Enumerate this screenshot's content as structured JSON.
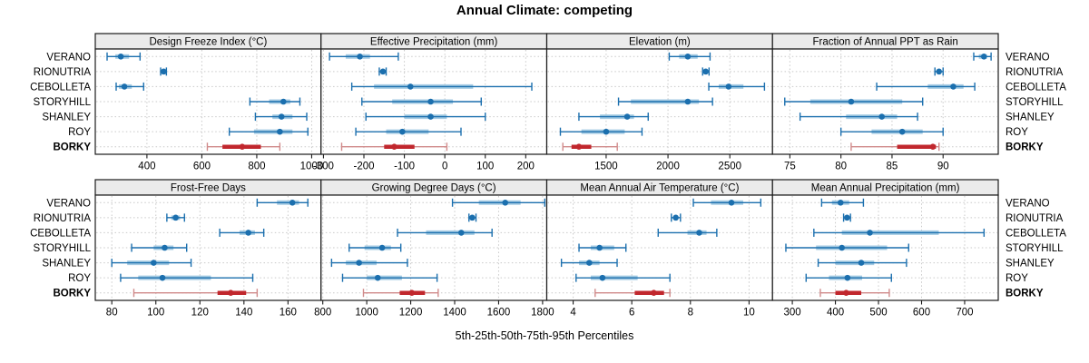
{
  "title": "Annual Climate: competing",
  "caption": "5th-25th-50th-75th-95th Percentiles",
  "chart_data": {
    "type": "dotplot-percentiles",
    "title": "Annual Climate: competing",
    "caption": "5th-25th-50th-75th-95th Percentiles",
    "percentiles": [
      5,
      25,
      50,
      75,
      95
    ],
    "sites": [
      "VERANO",
      "RIONUTRIA",
      "CEBOLLETA",
      "STORYHILL",
      "SHANLEY",
      "ROY",
      "BORKY"
    ],
    "highlight_site": "BORKY",
    "grid": "dotted",
    "layout_hint": "2 rows x 4 columns, free x scales, site labels on both sides",
    "colors": {
      "blue_main": "#1b6fae",
      "blue_band": "#a5cbe3",
      "red_main": "#c1272d",
      "red_light": "#d08a8a",
      "strip_bg": "#ebebeb",
      "frame": "#1a1a1a",
      "grid": "#c9c9c9"
    },
    "panels": [
      {
        "label": "Design Freeze Index (°C)",
        "ticks": [
          400,
          600,
          800,
          1000
        ],
        "xlim": [
          212,
          1034
        ],
        "values": [
          [
            255,
            285,
            305,
            335,
            375
          ],
          [
            450,
            456,
            461,
            466,
            471
          ],
          [
            288,
            298,
            318,
            345,
            388
          ],
          [
            775,
            845,
            897,
            922,
            957
          ],
          [
            795,
            857,
            890,
            930,
            982
          ],
          [
            700,
            790,
            884,
            930,
            986
          ],
          [
            620,
            675,
            747,
            815,
            884
          ]
        ]
      },
      {
        "label": "Effective Precipitation (mm)",
        "ticks": [
          -300,
          -200,
          -100,
          0,
          100,
          200
        ],
        "xlim": [
          -306,
          252
        ],
        "values": [
          [
            -285,
            -245,
            -210,
            -185,
            -115
          ],
          [
            -162,
            -157,
            -153,
            -149,
            -145
          ],
          [
            -230,
            -175,
            -85,
            70,
            215
          ],
          [
            -205,
            -130,
            -35,
            20,
            90
          ],
          [
            -195,
            -100,
            -35,
            5,
            100
          ],
          [
            -220,
            -145,
            -105,
            -40,
            40
          ],
          [
            -255,
            -150,
            -125,
            -75,
            5
          ]
        ]
      },
      {
        "label": "Elevation (m)",
        "ticks": [
          1500,
          2000,
          2500
        ],
        "xlim": [
          1020,
          2845
        ],
        "values": [
          [
            2010,
            2090,
            2160,
            2240,
            2340
          ],
          [
            2280,
            2295,
            2305,
            2318,
            2332
          ],
          [
            2330,
            2410,
            2490,
            2610,
            2780
          ],
          [
            1600,
            1700,
            2160,
            2250,
            2360
          ],
          [
            1280,
            1450,
            1670,
            1725,
            1840
          ],
          [
            1130,
            1300,
            1500,
            1650,
            1790
          ],
          [
            1150,
            1220,
            1280,
            1380,
            1590
          ]
        ]
      },
      {
        "label": "Fraction of Annual PPT as Rain",
        "ticks": [
          75,
          80,
          85,
          90
        ],
        "xlim": [
          73.3,
          95.4
        ],
        "values": [
          [
            93,
            93.5,
            94,
            94.3,
            94.7
          ],
          [
            89.2,
            89.4,
            89.6,
            89.8,
            90
          ],
          [
            83.5,
            88.5,
            91,
            92,
            93.1
          ],
          [
            74.5,
            77,
            81,
            86,
            88
          ],
          [
            76,
            80.5,
            84,
            85.5,
            87.5
          ],
          [
            80,
            83,
            86,
            88,
            90
          ],
          [
            81,
            85.5,
            89,
            89.3,
            89.6
          ]
        ]
      },
      {
        "label": "Frost-Free Days",
        "ticks": [
          80,
          100,
          120,
          140,
          160
        ],
        "xlim": [
          72.5,
          175
        ],
        "values": [
          [
            146,
            155,
            162,
            165,
            169
          ],
          [
            105,
            107,
            109,
            111,
            113
          ],
          [
            129,
            138,
            142,
            145,
            149
          ],
          [
            89,
            99,
            104,
            108,
            114
          ],
          [
            80,
            87,
            99,
            106,
            116
          ],
          [
            84,
            92,
            103,
            125,
            144
          ],
          [
            90,
            128,
            134,
            141,
            146
          ]
        ]
      },
      {
        "label": "Growing Degree Days (°C)",
        "ticks": [
          800,
          1000,
          1200,
          1400,
          1600,
          1800
        ],
        "xlim": [
          792,
          1819
        ],
        "values": [
          [
            1390,
            1510,
            1630,
            1700,
            1810
          ],
          [
            1465,
            1473,
            1480,
            1488,
            1497
          ],
          [
            1140,
            1270,
            1430,
            1490,
            1570
          ],
          [
            920,
            990,
            1070,
            1110,
            1155
          ],
          [
            840,
            905,
            965,
            1045,
            1185
          ],
          [
            890,
            1000,
            1050,
            1160,
            1320
          ],
          [
            985,
            1150,
            1205,
            1265,
            1325
          ]
        ]
      },
      {
        "label": "Mean Annual Air Temperature (°C)",
        "ticks": [
          4,
          6,
          8,
          10
        ],
        "xlim": [
          3.1,
          10.8
        ],
        "values": [
          [
            8.1,
            8.7,
            9.4,
            9.8,
            10.4
          ],
          [
            7.35,
            7.43,
            7.5,
            7.58,
            7.66
          ],
          [
            6.9,
            7.9,
            8.3,
            8.55,
            8.9
          ],
          [
            4.2,
            4.6,
            4.9,
            5.4,
            5.8
          ],
          [
            3.6,
            4.2,
            4.55,
            4.9,
            5.5
          ],
          [
            4.1,
            4.6,
            5.0,
            6.2,
            7.3
          ],
          [
            4.75,
            6.1,
            6.75,
            7.1,
            7.3
          ]
        ]
      },
      {
        "label": "Mean Annual Precipitation (mm)",
        "ticks": [
          300,
          400,
          500,
          600,
          700
        ],
        "xlim": [
          254,
          778
        ],
        "values": [
          [
            368,
            392,
            412,
            432,
            465
          ],
          [
            419,
            423,
            427,
            431,
            435
          ],
          [
            350,
            415,
            480,
            640,
            745
          ],
          [
            285,
            355,
            415,
            520,
            570
          ],
          [
            360,
            400,
            460,
            490,
            565
          ],
          [
            332,
            385,
            428,
            462,
            530
          ],
          [
            365,
            400,
            425,
            460,
            525
          ]
        ]
      }
    ]
  }
}
